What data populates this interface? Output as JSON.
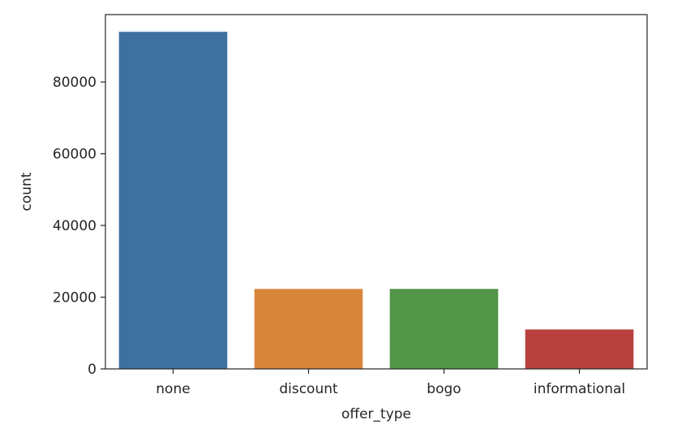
{
  "chart_data": {
    "type": "bar",
    "categories": [
      "none",
      "discount",
      "bogo",
      "informational"
    ],
    "values": [
      94000,
      22300,
      22300,
      11000
    ],
    "colors": [
      "#3e71a0",
      "#d9843b",
      "#519546",
      "#b8403f"
    ],
    "xlabel": "offer_type",
    "ylabel": "count",
    "ylim": [
      0,
      98800
    ],
    "yticks": [
      0,
      20000,
      40000,
      60000,
      80000
    ],
    "ytick_labels": [
      "0",
      "20000",
      "40000",
      "60000",
      "80000"
    ],
    "grid": false,
    "legend": "none"
  }
}
